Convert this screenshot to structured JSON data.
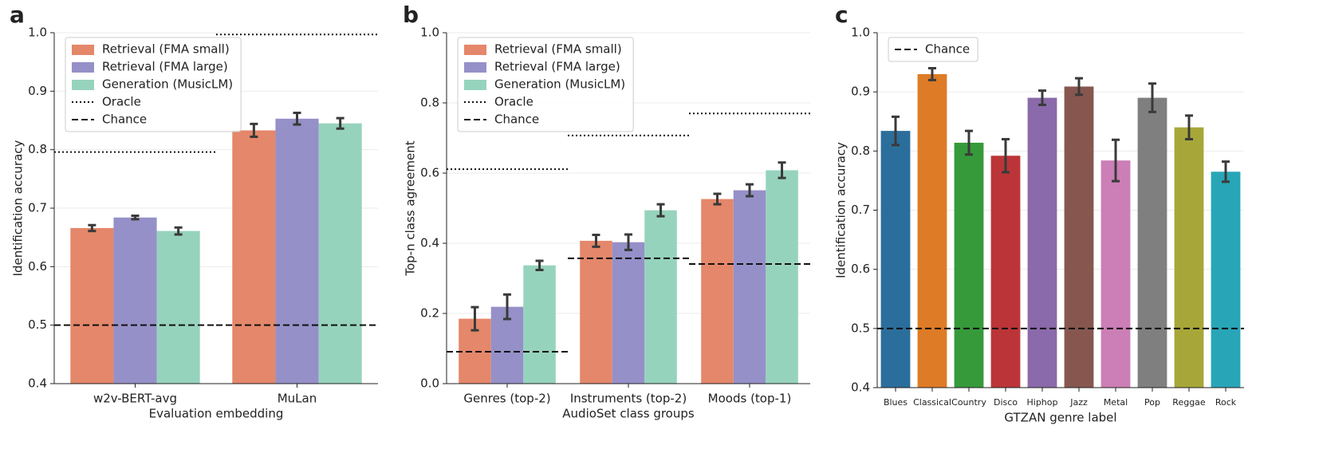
{
  "chart_data": [
    {
      "type": "grouped-bar",
      "panel": "a",
      "xlabel": "Evaluation embedding",
      "ylabel": "Identification accuracy",
      "categories": [
        "w2v-BERT-avg",
        "MuLan"
      ],
      "series": [
        {
          "name": "Retrieval (FMA small)",
          "color": "#e4876a",
          "values": [
            0.666,
            0.833
          ],
          "errors": [
            0.005,
            0.011
          ]
        },
        {
          "name": "Retrieval (FMA large)",
          "color": "#9590c8",
          "values": [
            0.684,
            0.853
          ],
          "errors": [
            0.003,
            0.01
          ]
        },
        {
          "name": "Generation (MusicLM)",
          "color": "#96d3bd",
          "values": [
            0.661,
            0.845
          ],
          "errors": [
            0.006,
            0.009
          ]
        }
      ],
      "reference_series": [
        {
          "name": "Oracle",
          "style": "dotted",
          "values": [
            0.796,
            0.997
          ]
        },
        {
          "name": "Chance",
          "style": "dashed",
          "values": [
            0.5,
            0.5
          ]
        }
      ],
      "ylim": [
        0.4,
        1.0
      ],
      "yticks": [
        0.4,
        0.5,
        0.6,
        0.7,
        0.8,
        0.9,
        {
          "value": 1,
          "label": "1.0"
        }
      ],
      "grid": true,
      "legend": "upper-left"
    },
    {
      "type": "grouped-bar",
      "panel": "b",
      "xlabel": "AudioSet class groups",
      "ylabel": "Top-n class agreement",
      "categories": [
        "Genres (top-2)",
        "Instruments (top-2)",
        "Moods (top-1)"
      ],
      "series": [
        {
          "name": "Retrieval (FMA small)",
          "color": "#e4876a",
          "values": [
            0.185,
            0.407,
            0.526
          ],
          "errors": [
            0.033,
            0.017,
            0.015
          ]
        },
        {
          "name": "Retrieval (FMA large)",
          "color": "#9590c8",
          "values": [
            0.219,
            0.403,
            0.551
          ],
          "errors": [
            0.035,
            0.022,
            0.017
          ]
        },
        {
          "name": "Generation (MusicLM)",
          "color": "#96d3bd",
          "values": [
            0.337,
            0.494,
            0.608
          ],
          "errors": [
            0.013,
            0.017,
            0.022
          ]
        }
      ],
      "reference_series": [
        {
          "name": "Oracle",
          "style": "dotted",
          "values": [
            0.611,
            0.707,
            0.77
          ]
        },
        {
          "name": "Chance",
          "style": "dashed",
          "values": [
            0.091,
            0.357,
            0.341
          ]
        }
      ],
      "ylim": [
        0,
        1.0
      ],
      "yticks": [
        {
          "value": 0,
          "label": "0.0"
        },
        0.2,
        0.4,
        0.6,
        0.8,
        {
          "value": 1,
          "label": "1.0"
        }
      ],
      "grid": true,
      "legend": "upper-left"
    },
    {
      "type": "bar",
      "panel": "c",
      "xlabel": "GTZAN genre label",
      "ylabel": "Identification accuracy",
      "categories": [
        "Blues",
        "Classical",
        "Country",
        "Disco",
        "Hiphop",
        "Jazz",
        "Metal",
        "Pop",
        "Reggae",
        "Rock"
      ],
      "values": [
        0.834,
        0.93,
        0.814,
        0.792,
        0.89,
        0.909,
        0.784,
        0.89,
        0.84,
        0.765
      ],
      "errors": [
        0.024,
        0.01,
        0.02,
        0.028,
        0.012,
        0.014,
        0.035,
        0.024,
        0.02,
        0.017
      ],
      "colors": [
        "#2c6e9b",
        "#de7b26",
        "#369a3a",
        "#bb3538",
        "#8a6aaa",
        "#87574f",
        "#cc7eb6",
        "#7f7f7f",
        "#a7a739",
        "#28a6b8"
      ],
      "reference_series": [
        {
          "name": "Chance",
          "style": "dashed",
          "value": 0.5
        }
      ],
      "ylim": [
        0.4,
        1.0
      ],
      "yticks": [
        0.4,
        0.5,
        0.6,
        0.7,
        0.8,
        0.9,
        {
          "value": 1,
          "label": "1.0"
        }
      ],
      "grid": true,
      "legend": "upper-left"
    }
  ]
}
